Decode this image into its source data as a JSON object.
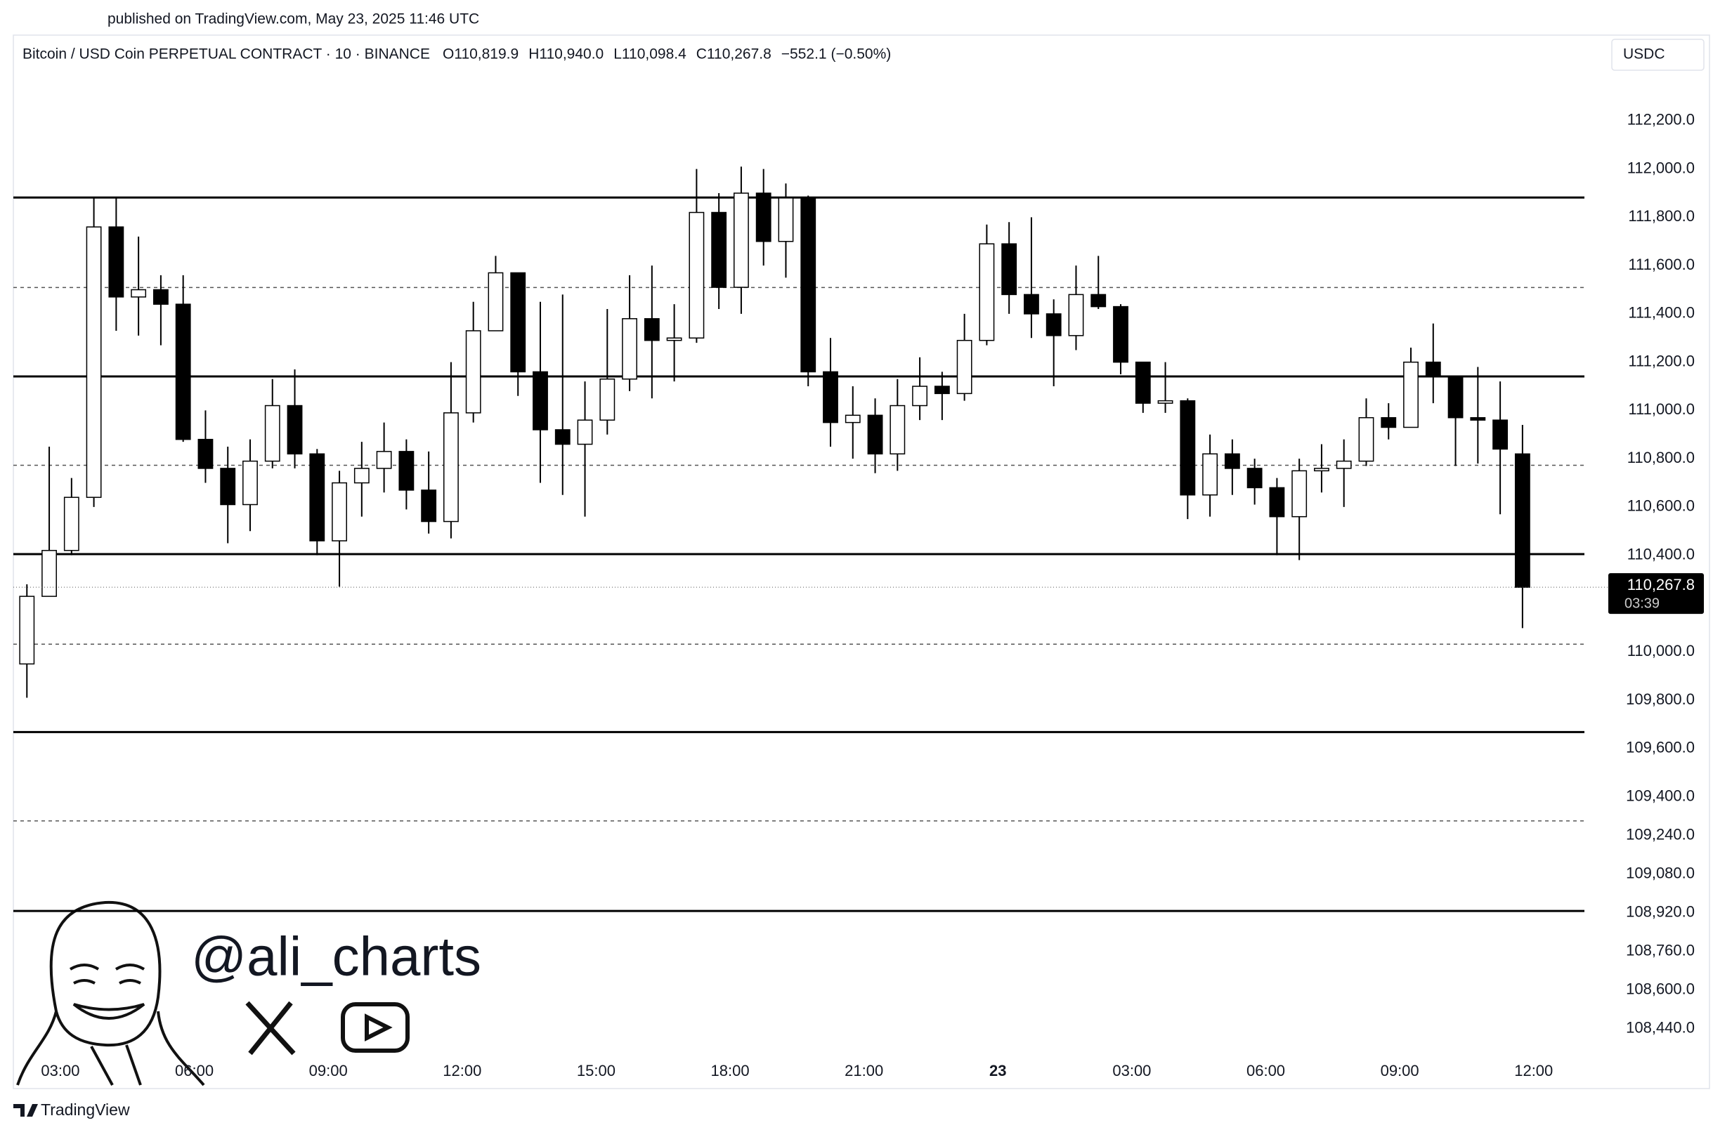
{
  "published": "published on TradingView.com, May 23, 2025 11:46 UTC",
  "symbol": "Bitcoin / USD Coin PERPETUAL CONTRACT · 10 · BINANCE",
  "ohlc_labels": [
    "O110,819.9",
    "H110,940.0",
    "L110,098.4",
    "C110,267.8",
    "−552.1 (−0.50%)"
  ],
  "currency": "USDC",
  "handle": "@ali_charts",
  "brand": "TradingView",
  "chart_data": {
    "type": "candlestick",
    "categories": [
      null,
      null,
      "03:00",
      null,
      null,
      null,
      null,
      null,
      "06:00",
      null,
      null,
      null,
      null,
      null,
      "09:00",
      null,
      null,
      null,
      null,
      null,
      "12:00",
      null,
      null,
      null,
      null,
      null,
      "15:00",
      null,
      null,
      null,
      null,
      null,
      "18:00",
      null,
      null,
      null,
      null,
      null,
      "21:00",
      null,
      null,
      null,
      null,
      null,
      "23",
      null,
      null,
      null,
      null,
      null,
      "03:00",
      null,
      null,
      null,
      null,
      null,
      "06:00",
      null,
      null,
      null,
      null,
      null,
      "09:00",
      null,
      null,
      null,
      null,
      null,
      "12:00"
    ],
    "open": [
      109950,
      110230,
      110420,
      110640,
      111760,
      111470,
      111500,
      111440,
      110880,
      110760,
      110610,
      110790,
      111020,
      110820,
      110460,
      110700,
      110760,
      110830,
      110670,
      110540,
      110990,
      111330,
      111570,
      111160,
      110920,
      110860,
      110960,
      111130,
      111380,
      111290,
      111300,
      111820,
      111510,
      111900,
      111700,
      111880,
      111160,
      110950,
      110980,
      110820,
      111020,
      111100,
      111070,
      111290,
      111690,
      111480,
      111400,
      111310,
      111480,
      111430,
      111200,
      111030,
      111040,
      110650,
      110820,
      110760,
      110680,
      110560,
      110750,
      110760,
      110790,
      110970,
      110930,
      111200,
      111140,
      110970,
      110960,
      110819.9,
      null
    ],
    "high": [
      110280,
      110850,
      110720,
      111880,
      111880,
      111720,
      111560,
      111560,
      111000,
      110850,
      110880,
      111130,
      111170,
      110840,
      110750,
      110870,
      110950,
      110880,
      110830,
      111200,
      111450,
      111640,
      111560,
      111450,
      111480,
      111120,
      111420,
      111560,
      111600,
      111440,
      112000,
      111900,
      112010,
      112000,
      111940,
      111890,
      111300,
      111100,
      111050,
      111130,
      111220,
      111160,
      111400,
      111770,
      111780,
      111800,
      111460,
      111600,
      111640,
      111440,
      111200,
      111200,
      111050,
      110900,
      110880,
      110800,
      110720,
      110800,
      110860,
      110880,
      111050,
      111030,
      111260,
      111360,
      111140,
      111180,
      111120,
      110940.0,
      null
    ],
    "low": [
      109810,
      110230,
      110400,
      110600,
      111330,
      111310,
      111270,
      110870,
      110700,
      110450,
      110500,
      110760,
      110760,
      110400,
      110270,
      110560,
      110660,
      110590,
      110490,
      110470,
      110950,
      111330,
      111060,
      110700,
      110650,
      110560,
      110900,
      111080,
      111050,
      111120,
      111280,
      111420,
      111400,
      111600,
      111550,
      111100,
      110850,
      110800,
      110740,
      110750,
      110960,
      110960,
      111040,
      111270,
      111400,
      111300,
      111100,
      111250,
      111420,
      111150,
      110990,
      110990,
      110550,
      110560,
      110650,
      110610,
      110400,
      110380,
      110660,
      110600,
      110770,
      110880,
      110930,
      111030,
      110770,
      110780,
      110570,
      110098.4,
      null
    ],
    "close": [
      110230,
      110420,
      110640,
      111760,
      111470,
      111500,
      111440,
      110880,
      110760,
      110610,
      110790,
      111020,
      110820,
      110460,
      110700,
      110760,
      110830,
      110670,
      110540,
      110990,
      111330,
      111570,
      111160,
      110920,
      110860,
      110960,
      111130,
      111380,
      111290,
      111300,
      111820,
      111510,
      111900,
      111700,
      111880,
      111160,
      110950,
      110980,
      110820,
      111020,
      111100,
      111070,
      111290,
      111690,
      111480,
      111400,
      111310,
      111480,
      111430,
      111200,
      111030,
      111040,
      110650,
      110820,
      110760,
      110680,
      110560,
      110750,
      110760,
      110790,
      110970,
      110930,
      111200,
      111140,
      110970,
      110960,
      110840,
      110267.8,
      null
    ],
    "up_color": "#ffffff",
    "down_color": "#000000",
    "wick_color": "#000000",
    "ylim": [
      108200,
      112540
    ],
    "yticks": [
      {
        "value": 112200,
        "label": "112,200.0"
      },
      {
        "value": 112000,
        "label": "112,000.0"
      },
      {
        "value": 111800,
        "label": "111,800.0"
      },
      {
        "value": 111600,
        "label": "111,600.0"
      },
      {
        "value": 111400,
        "label": "111,400.0"
      },
      {
        "value": 111200,
        "label": "111,200.0"
      },
      {
        "value": 111000,
        "label": "111,000.0"
      },
      {
        "value": 110800,
        "label": "110,800.0"
      },
      {
        "value": 110600,
        "label": "110,600.0"
      },
      {
        "value": 110400,
        "label": "110,400.0"
      },
      {
        "value": 110000,
        "label": "110,000.0"
      },
      {
        "value": 109800,
        "label": "109,800.0"
      },
      {
        "value": 109600,
        "label": "109,600.0"
      },
      {
        "value": 109400,
        "label": "109,400.0"
      },
      {
        "value": 109240,
        "label": "109,240.0"
      },
      {
        "value": 109080,
        "label": "109,080.0"
      },
      {
        "value": 108920,
        "label": "108,920.0"
      },
      {
        "value": 108760,
        "label": "108,760.0"
      },
      {
        "value": 108600,
        "label": "108,600.0"
      },
      {
        "value": 108440,
        "label": "108,440.0"
      }
    ],
    "solid_levels": [
      111882,
      111141,
      110405,
      109668,
      108927
    ],
    "dashed_levels": [
      111509,
      110773,
      110032,
      109300
    ],
    "last_price_label": "110,267.8",
    "countdown": "03:39"
  }
}
